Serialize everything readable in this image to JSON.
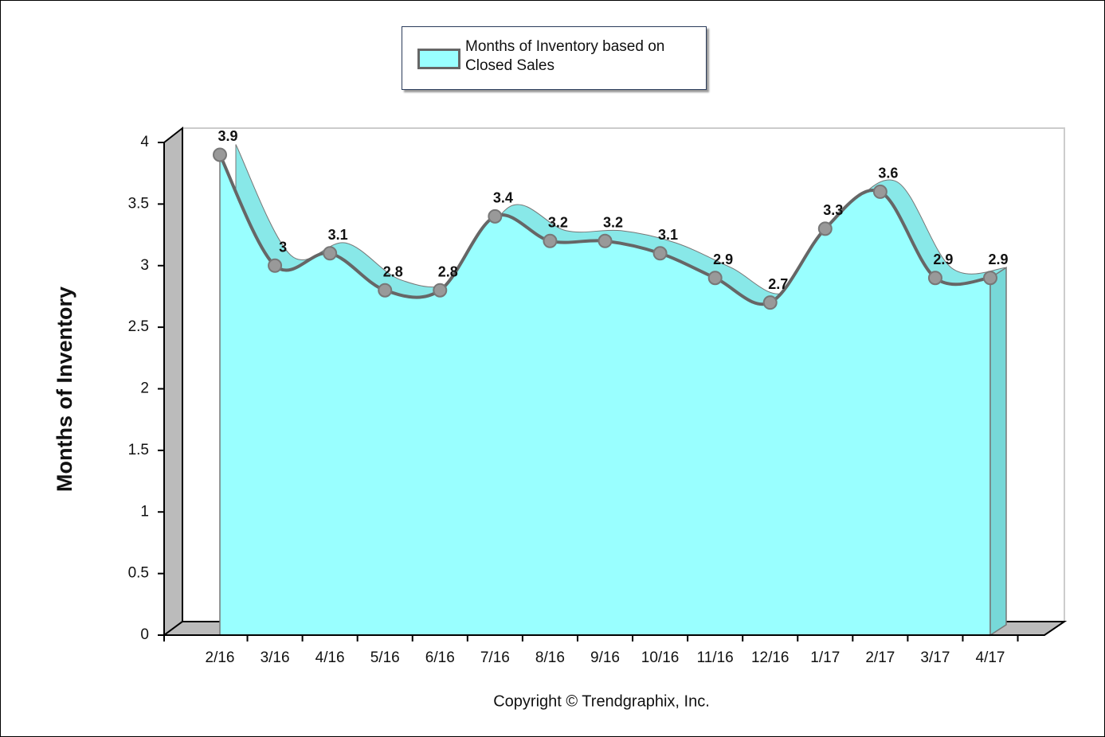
{
  "chart_data": {
    "type": "area",
    "y_label": "Months of Inventory",
    "caption": "Copyright © Trendgraphix, Inc.",
    "categories": [
      "2/16",
      "3/16",
      "4/16",
      "5/16",
      "6/16",
      "7/16",
      "8/16",
      "9/16",
      "10/16",
      "11/16",
      "12/16",
      "1/17",
      "2/17",
      "3/17",
      "4/17"
    ],
    "series": [
      {
        "name": "Months of Inventory based on Closed Sales",
        "color": "#99ffff",
        "values": [
          3.9,
          3,
          3.1,
          2.8,
          2.8,
          3.4,
          3.2,
          3.2,
          3.1,
          2.9,
          2.7,
          3.3,
          3.6,
          2.9,
          2.9
        ]
      }
    ],
    "ylim": [
      0,
      4
    ],
    "yticks": [
      0,
      0.5,
      1,
      1.5,
      2,
      2.5,
      3,
      3.5,
      4
    ],
    "data_labels": true,
    "legend": "top"
  }
}
